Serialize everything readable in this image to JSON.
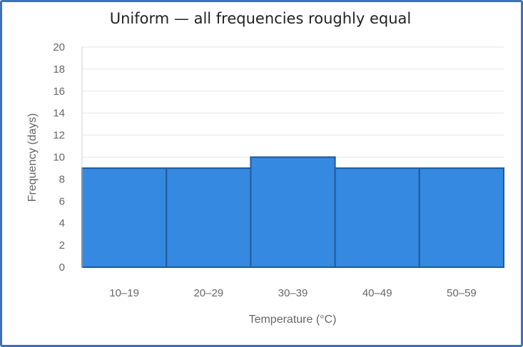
{
  "chart_data": {
    "type": "bar",
    "title": "Uniform — all frequencies roughly equal",
    "xlabel": "Temperature (°C)",
    "ylabel": "Frequency (days)",
    "categories": [
      "10–19",
      "20–29",
      "30–39",
      "40–49",
      "50–59"
    ],
    "values": [
      9,
      9,
      10,
      9,
      9
    ],
    "ylim": [
      0,
      20
    ],
    "yticks": [
      "0",
      "2",
      "4",
      "6",
      "8",
      "10",
      "12",
      "14",
      "16",
      "18",
      "20"
    ],
    "grid": true,
    "legend": "none",
    "bar_color": "#3589e0",
    "bar_border_color": "#1f5a9e",
    "frame_color": "#3f6fbf"
  }
}
